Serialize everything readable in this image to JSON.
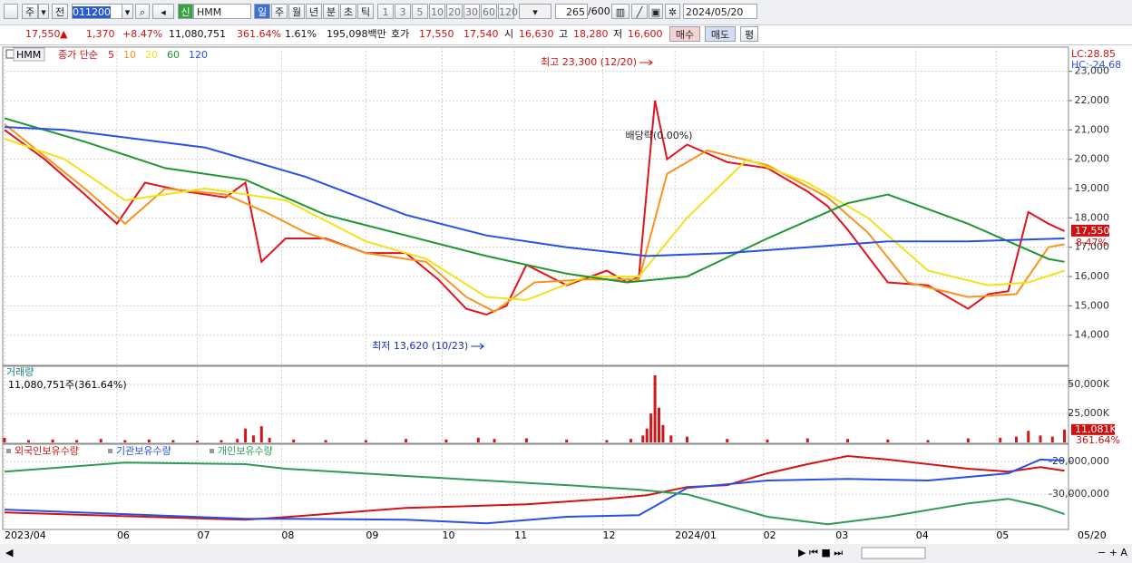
{
  "toolbar": {
    "stock_type": "주",
    "prev": "전",
    "code": "011200",
    "new": "신",
    "name": "HMM",
    "periods": [
      "일",
      "주",
      "월",
      "년",
      "분",
      "초",
      "틱"
    ],
    "intervals": [
      "1",
      "3",
      "5",
      "10",
      "20",
      "30",
      "60",
      "120"
    ],
    "count": "265",
    "max": "/600",
    "date": "2024/05/20"
  },
  "quote": {
    "price": "17,550",
    "arrow": "▲",
    "change": "1,370",
    "rate": "+8.47%",
    "volume": "11,080,751",
    "volume_rate": "361.64%",
    "turnover": "1.61%",
    "amount": "195,098백만",
    "ask_label": "호가",
    "ask": "17,550",
    "bid": "17,540",
    "open_label": "시",
    "open": "16,630",
    "high_label": "고",
    "high": "18,280",
    "low_label": "저",
    "low": "16,600",
    "buy": "매수",
    "sell": "매도",
    "avg": "평"
  },
  "chart_data": [
    {
      "type": "line",
      "title": "HMM",
      "legend_prefix": "종가 단순",
      "lc": "LC:28.85",
      "hc": "HC:-24.68",
      "last_label": "17,550",
      "last_change": "8.47%",
      "xlim": [
        0,
        265
      ],
      "ylim": [
        13000,
        23330
      ],
      "yticks": [
        {
          "value": 14000,
          "label": "14,000"
        },
        {
          "value": 15000,
          "label": "15,000"
        },
        {
          "value": 16000,
          "label": "16,000"
        },
        {
          "value": 17000,
          "label": "17,000"
        },
        {
          "value": 18000,
          "label": "18,000"
        },
        {
          "value": 19000,
          "label": "19,000"
        },
        {
          "value": 20000,
          "label": "20,000"
        },
        {
          "value": 21000,
          "label": "21,000"
        },
        {
          "value": 22000,
          "label": "22,000"
        },
        {
          "value": 23000,
          "label": "23,000"
        }
      ],
      "grid": true,
      "series": [
        {
          "name": "5",
          "color": "#e0141e",
          "x": [
            0,
            10,
            20,
            28,
            35,
            45,
            55,
            60,
            64,
            70,
            80,
            90,
            100,
            108,
            115,
            120,
            125,
            130,
            140,
            150,
            155,
            158,
            160,
            162,
            165,
            170,
            180,
            190,
            200,
            205,
            210,
            220,
            230,
            240,
            245,
            250,
            255,
            260,
            264
          ],
          "values": [
            21000,
            20000,
            18800,
            17800,
            19200,
            18900,
            18700,
            19200,
            16500,
            17300,
            17300,
            16800,
            16800,
            15900,
            14900,
            14700,
            15000,
            16400,
            15700,
            16200,
            15800,
            16000,
            19000,
            22000,
            20000,
            20500,
            19900,
            19700,
            18900,
            18400,
            17600,
            15800,
            15700,
            14900,
            15400,
            15500,
            18200,
            17800,
            17550
          ]
        },
        {
          "name": "10",
          "color": "#f7931e",
          "x": [
            0,
            20,
            30,
            40,
            55,
            65,
            75,
            90,
            105,
            115,
            122,
            132,
            145,
            158,
            165,
            175,
            190,
            205,
            215,
            225,
            240,
            252,
            260,
            264
          ],
          "values": [
            21200,
            19000,
            17800,
            19000,
            18800,
            18200,
            17500,
            16800,
            16500,
            15300,
            14800,
            15800,
            15900,
            15900,
            19500,
            20300,
            19800,
            18700,
            17500,
            15800,
            15300,
            15400,
            17000,
            17100
          ]
        },
        {
          "name": "20",
          "color": "#f2e21a",
          "x": [
            0,
            15,
            30,
            50,
            70,
            90,
            105,
            120,
            130,
            145,
            158,
            170,
            185,
            200,
            215,
            230,
            245,
            255,
            264
          ],
          "values": [
            20700,
            20000,
            18600,
            19000,
            18600,
            17200,
            16600,
            15300,
            15200,
            16000,
            16000,
            18000,
            20000,
            19200,
            18000,
            16200,
            15700,
            15800,
            16200
          ]
        },
        {
          "name": "60",
          "color": "#1e9632",
          "x": [
            0,
            20,
            40,
            60,
            80,
            100,
            120,
            140,
            155,
            170,
            190,
            210,
            220,
            240,
            260,
            264
          ],
          "values": [
            21400,
            20600,
            19700,
            19300,
            18100,
            17400,
            16700,
            16100,
            15800,
            16000,
            17300,
            18500,
            18800,
            17800,
            16600,
            16500
          ]
        },
        {
          "name": "120",
          "color": "#2850e6",
          "x": [
            0,
            15,
            50,
            75,
            100,
            120,
            140,
            160,
            180,
            200,
            220,
            240,
            264
          ],
          "values": [
            21100,
            21000,
            20400,
            19400,
            18100,
            17400,
            17000,
            16700,
            16800,
            17000,
            17200,
            17200,
            17300
          ]
        }
      ],
      "annotations": [
        {
          "text": "최고 23,300 (12/20)",
          "x": 162,
          "y": 23300,
          "color": "#d01010"
        },
        {
          "text": "최저 13,620 (10/23)",
          "x": 120,
          "y": 13620,
          "color": "#1030c0"
        },
        {
          "text": "배당락(0.00%)",
          "x": 163,
          "y": 20800,
          "color": "#222222"
        }
      ]
    },
    {
      "type": "bar",
      "title": "거래량",
      "subtitle": "11,080,751주(361.64%)",
      "last_label": "11,081K",
      "last_change": "361.64%",
      "color": "#d01818",
      "xlim": [
        0,
        265
      ],
      "ylim": [
        0,
        65000
      ],
      "yticks": [
        {
          "value": 25000,
          "label": "25,000K"
        },
        {
          "value": 50000,
          "label": "50,000K"
        }
      ],
      "x": [
        0,
        6,
        12,
        18,
        24,
        30,
        36,
        42,
        48,
        54,
        58,
        60,
        62,
        64,
        66,
        72,
        80,
        90,
        100,
        110,
        118,
        122,
        130,
        140,
        150,
        156,
        159,
        160,
        161,
        162,
        163,
        164,
        166,
        170,
        180,
        190,
        200,
        210,
        220,
        230,
        240,
        248,
        252,
        255,
        258,
        261,
        264
      ],
      "values": [
        4000,
        2000,
        2500,
        2000,
        3000,
        2000,
        2500,
        2000,
        1500,
        2000,
        3000,
        12000,
        6000,
        14000,
        4000,
        2500,
        2000,
        2000,
        3000,
        2500,
        4000,
        3000,
        3500,
        2500,
        2000,
        3000,
        6000,
        12000,
        25000,
        58000,
        30000,
        15000,
        6000,
        5000,
        3000,
        2500,
        3500,
        3000,
        2500,
        2000,
        3500,
        4000,
        5000,
        10000,
        6000,
        5000,
        11081
      ]
    },
    {
      "type": "line",
      "xlim": [
        0,
        265
      ],
      "ylim": [
        -40500000,
        -14700000
      ],
      "last_date_label": "05/20",
      "yticks": [
        {
          "value": -20000000,
          "label": "-20,000,000"
        },
        {
          "value": -30000000,
          "label": "-30,000,000"
        }
      ],
      "xticks": [
        {
          "value": 0,
          "label": "2023/04"
        },
        {
          "value": 28,
          "label": "06"
        },
        {
          "value": 48,
          "label": "07"
        },
        {
          "value": 69,
          "label": "08"
        },
        {
          "value": 90,
          "label": "09"
        },
        {
          "value": 109,
          "label": "10"
        },
        {
          "value": 127,
          "label": "11"
        },
        {
          "value": 149,
          "label": "12"
        },
        {
          "value": 167,
          "label": "2024/01"
        },
        {
          "value": 189,
          "label": "02"
        },
        {
          "value": 207,
          "label": "03"
        },
        {
          "value": 227,
          "label": "04"
        },
        {
          "value": 247,
          "label": "05"
        }
      ],
      "series": [
        {
          "name": "외국인보유수량",
          "color": "#d01414",
          "x": [
            0,
            60,
            70,
            100,
            130,
            150,
            160,
            170,
            180,
            190,
            200,
            210,
            220,
            240,
            250,
            258,
            264
          ],
          "values": [
            -35600000,
            -37800000,
            -37000000,
            -34200000,
            -33100000,
            -31400000,
            -30300000,
            -27800000,
            -27200000,
            -23600000,
            -20800000,
            -18300000,
            -19400000,
            -22200000,
            -23100000,
            -21700000,
            -22800000
          ]
        },
        {
          "name": "기관보유수량",
          "color": "#2850e6",
          "x": [
            0,
            30,
            60,
            70,
            100,
            120,
            140,
            158,
            170,
            190,
            210,
            230,
            250,
            258,
            264
          ],
          "values": [
            -34700000,
            -36100000,
            -37500000,
            -37500000,
            -37800000,
            -38900000,
            -36900000,
            -36400000,
            -28100000,
            -25800000,
            -25300000,
            -25800000,
            -23600000,
            -19400000,
            -19700000
          ]
        },
        {
          "name": "개인보유수량",
          "color": "#2e9a5a",
          "x": [
            0,
            30,
            60,
            70,
            100,
            140,
            158,
            170,
            190,
            205,
            220,
            240,
            250,
            258,
            264
          ],
          "values": [
            -23100000,
            -20300000,
            -20800000,
            -22200000,
            -24400000,
            -27200000,
            -28600000,
            -30000000,
            -36900000,
            -39200000,
            -36900000,
            -32800000,
            -31400000,
            -33600000,
            -36100000
          ]
        }
      ]
    }
  ]
}
